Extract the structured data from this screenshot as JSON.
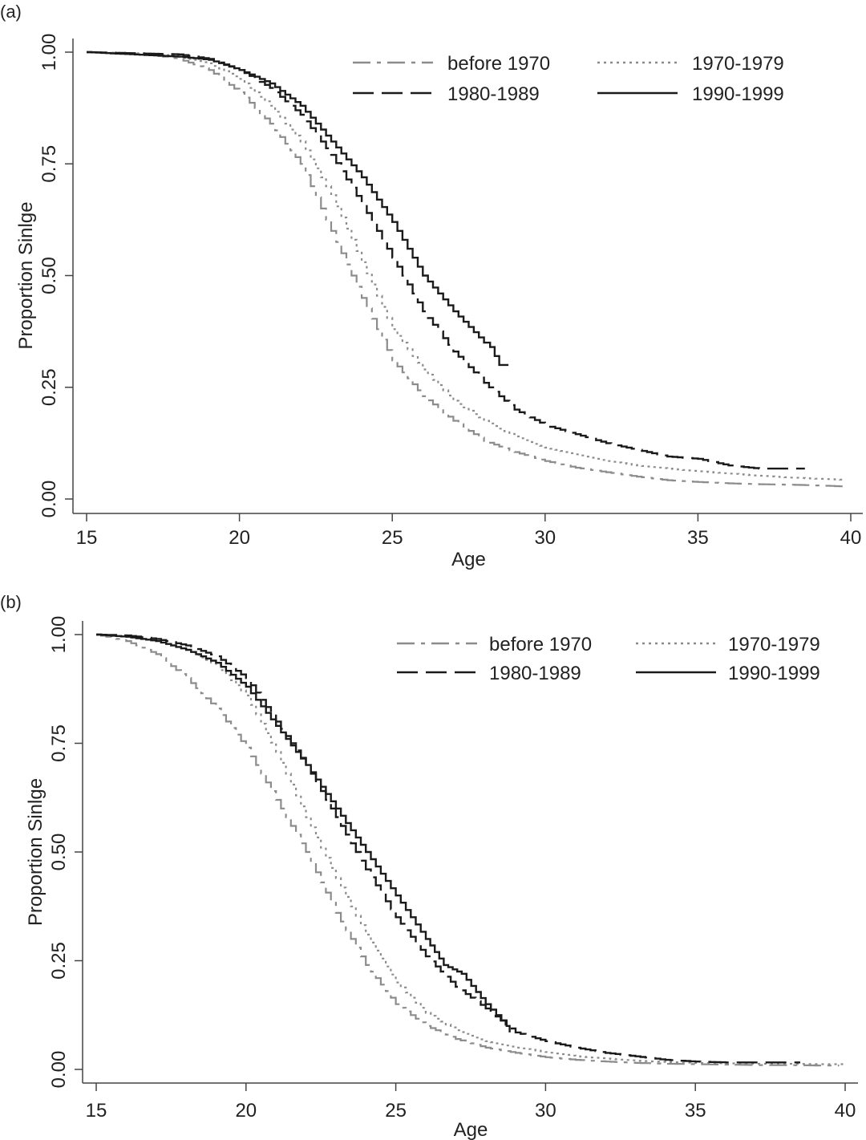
{
  "chart_data": [
    {
      "type": "line",
      "panel_label": "(a)",
      "title": "",
      "xlabel": "Age",
      "ylabel": "Proportion Sinlge",
      "xlim": [
        14.7,
        40.2
      ],
      "ylim": [
        0,
        1
      ],
      "xticks": [
        15,
        20,
        25,
        30,
        35,
        40
      ],
      "xtick_labels": [
        "15",
        "20",
        "25",
        "30",
        "35",
        "40"
      ],
      "yticks": [
        0,
        0.25,
        0.5,
        0.75,
        1
      ],
      "ytick_labels": [
        "0.00",
        "0.25",
        "0.50",
        "0.75",
        "1.00"
      ],
      "grid": false,
      "legend_placement": "top-right",
      "series": [
        {
          "name": "before 1970",
          "color": "#8c8c8c",
          "style": "dash-dot",
          "x": [
            15,
            17,
            18,
            19,
            20,
            21,
            22,
            23,
            24,
            25,
            26,
            27,
            28,
            29,
            30,
            31,
            32,
            33,
            34,
            35,
            36,
            37,
            38,
            39,
            39.8
          ],
          "y": [
            1.0,
            0.995,
            0.985,
            0.96,
            0.91,
            0.84,
            0.75,
            0.6,
            0.45,
            0.31,
            0.23,
            0.175,
            0.13,
            0.105,
            0.085,
            0.07,
            0.06,
            0.05,
            0.042,
            0.038,
            0.035,
            0.033,
            0.032,
            0.03,
            0.028
          ]
        },
        {
          "name": "1970-1979",
          "color": "#8c8c8c",
          "style": "dotted",
          "x": [
            15,
            17,
            18,
            19,
            20,
            21,
            22,
            23,
            24,
            25,
            26,
            27,
            28,
            29,
            30,
            31,
            32,
            33,
            34,
            35,
            36,
            37,
            38,
            39,
            39.8
          ],
          "y": [
            1.0,
            0.997,
            0.99,
            0.975,
            0.94,
            0.88,
            0.8,
            0.68,
            0.53,
            0.38,
            0.29,
            0.22,
            0.175,
            0.14,
            0.115,
            0.1,
            0.085,
            0.075,
            0.068,
            0.062,
            0.057,
            0.052,
            0.048,
            0.045,
            0.043
          ]
        },
        {
          "name": "1980-1989",
          "color": "#1a1a1a",
          "style": "dashed",
          "x": [
            15,
            18,
            19,
            20,
            21,
            22,
            23,
            24,
            25,
            26,
            27,
            28,
            29,
            30,
            31,
            32,
            33,
            34,
            35,
            36,
            37,
            38,
            38.5
          ],
          "y": [
            1.0,
            0.995,
            0.985,
            0.96,
            0.92,
            0.86,
            0.77,
            0.66,
            0.54,
            0.42,
            0.33,
            0.26,
            0.2,
            0.165,
            0.145,
            0.125,
            0.11,
            0.095,
            0.09,
            0.075,
            0.068,
            0.068,
            0.068
          ]
        },
        {
          "name": "1990-1999",
          "color": "#1a1a1a",
          "style": "solid",
          "x": [
            15,
            18,
            19,
            20,
            21,
            22,
            23,
            24,
            25,
            26,
            27,
            28,
            28.2,
            28.5,
            28.8
          ],
          "y": [
            1.0,
            0.99,
            0.983,
            0.96,
            0.93,
            0.88,
            0.8,
            0.72,
            0.62,
            0.5,
            0.42,
            0.35,
            0.34,
            0.3,
            0.3
          ]
        }
      ]
    },
    {
      "type": "line",
      "panel_label": "(b)",
      "title": "",
      "xlabel": "Age",
      "ylabel": "Proportion Sinlge",
      "xlim": [
        14.7,
        40.2
      ],
      "ylim": [
        0,
        1
      ],
      "xticks": [
        15,
        20,
        25,
        30,
        35,
        40
      ],
      "xtick_labels": [
        "15",
        "20",
        "25",
        "30",
        "35",
        "40"
      ],
      "yticks": [
        0,
        0.25,
        0.5,
        0.75,
        1
      ],
      "ytick_labels": [
        "0.00",
        "0.25",
        "0.50",
        "0.75",
        "1.00"
      ],
      "grid": false,
      "legend_placement": "top-right",
      "series": [
        {
          "name": "before 1970",
          "color": "#8c8c8c",
          "style": "dash-dot",
          "x": [
            15,
            16,
            17,
            18,
            19,
            20,
            21,
            22,
            23,
            24,
            25,
            26,
            27,
            28,
            29,
            30,
            31,
            32,
            33,
            34,
            35,
            36,
            37,
            38,
            39,
            39.8
          ],
          "y": [
            1.0,
            0.985,
            0.955,
            0.9,
            0.83,
            0.74,
            0.62,
            0.5,
            0.36,
            0.24,
            0.15,
            0.1,
            0.07,
            0.05,
            0.038,
            0.028,
            0.022,
            0.018,
            0.015,
            0.013,
            0.012,
            0.011,
            0.01,
            0.01,
            0.009,
            0.009
          ]
        },
        {
          "name": "1970-1979",
          "color": "#8c8c8c",
          "style": "dotted",
          "x": [
            15,
            16,
            17,
            18,
            19,
            20,
            21,
            22,
            23,
            24,
            25,
            26,
            27,
            28,
            29,
            30,
            31,
            32,
            33,
            34,
            35,
            36,
            37,
            38,
            39,
            40
          ],
          "y": [
            1.0,
            0.995,
            0.985,
            0.965,
            0.93,
            0.86,
            0.73,
            0.58,
            0.44,
            0.31,
            0.2,
            0.13,
            0.09,
            0.065,
            0.05,
            0.04,
            0.03,
            0.025,
            0.02,
            0.017,
            0.015,
            0.014,
            0.013,
            0.013,
            0.012,
            0.012
          ]
        },
        {
          "name": "1980-1989",
          "color": "#1a1a1a",
          "style": "dashed",
          "x": [
            15,
            16,
            17,
            18,
            19,
            20,
            21,
            22,
            23,
            24,
            25,
            26,
            27,
            28,
            29,
            30,
            31,
            32,
            33,
            34,
            35,
            36,
            37,
            38,
            38.5
          ],
          "y": [
            1.0,
            0.998,
            0.99,
            0.975,
            0.95,
            0.9,
            0.8,
            0.7,
            0.58,
            0.46,
            0.35,
            0.26,
            0.19,
            0.14,
            0.085,
            0.065,
            0.05,
            0.038,
            0.03,
            0.022,
            0.018,
            0.016,
            0.016,
            0.016,
            0.016
          ]
        },
        {
          "name": "1990-1999",
          "color": "#1a1a1a",
          "style": "solid",
          "x": [
            15,
            16,
            17,
            18,
            19,
            20,
            21,
            22,
            23,
            24,
            25,
            26,
            26.6,
            27.2,
            28,
            28.7,
            28.8
          ],
          "y": [
            1.0,
            0.995,
            0.985,
            0.965,
            0.935,
            0.88,
            0.79,
            0.7,
            0.6,
            0.5,
            0.4,
            0.3,
            0.24,
            0.22,
            0.15,
            0.1,
            0.085
          ]
        }
      ]
    }
  ]
}
